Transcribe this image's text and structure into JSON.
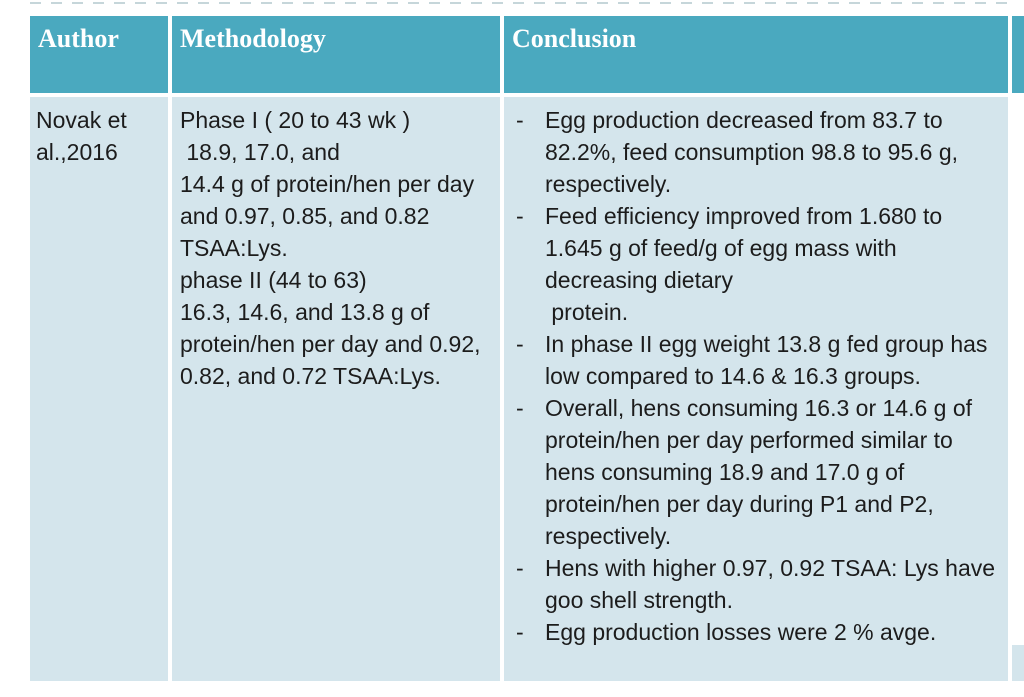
{
  "slide": {
    "colors": {
      "header_bg": "#4AA9BF",
      "body_bg": "#D4E5EC",
      "header_text": "#FFFFFF",
      "body_text": "#1C1C1C"
    },
    "table": {
      "headers": [
        "Author",
        "Methodology",
        "Conclusion"
      ],
      "author_lines": [
        "Novak et",
        "al.,2016"
      ],
      "methodology_lines": [
        "Phase I ( 20 to 43 wk )",
        " 18.9, 17.0, and",
        "14.4 g of protein/hen per day",
        "and 0.97, 0.85, and 0.82",
        "TSAA:Lys.",
        "phase II (44 to 63)",
        "16.3, 14.6, and 13.8 g of",
        "protein/hen per day and 0.92,",
        "0.82, and 0.72 TSAA:Lys."
      ],
      "conclusion_bullets": [
        {
          "marker": "-",
          "lines": [
            "Egg production decreased from 83.7 to",
            "82.2%, feed consumption 98.8 to 95.6 g,",
            "respectively."
          ]
        },
        {
          "marker": "-",
          "lines": [
            "Feed efficiency improved from 1.680 to",
            "1.645 g of feed/g of egg mass with",
            "decreasing dietary",
            " protein."
          ]
        },
        {
          "marker": "-",
          "lines": [
            "In phase II egg weight 13.8 g fed group has",
            "low compared to 14.6 & 16.3 groups."
          ]
        },
        {
          "marker": "-",
          "lines": [
            "Overall, hens consuming 16.3 or 14.6 g of",
            "protein/hen per day performed similar to",
            "hens consuming 18.9 and 17.0 g of",
            "protein/hen per day during P1 and P2,",
            "respectively."
          ]
        },
        {
          "marker": "-",
          "lines": [
            "Hens with higher 0.97, 0.92 TSAA: Lys have",
            "goo shell strength."
          ]
        },
        {
          "marker": "-",
          "lines": [
            "Egg production losses were 2 % avge."
          ]
        }
      ]
    }
  }
}
